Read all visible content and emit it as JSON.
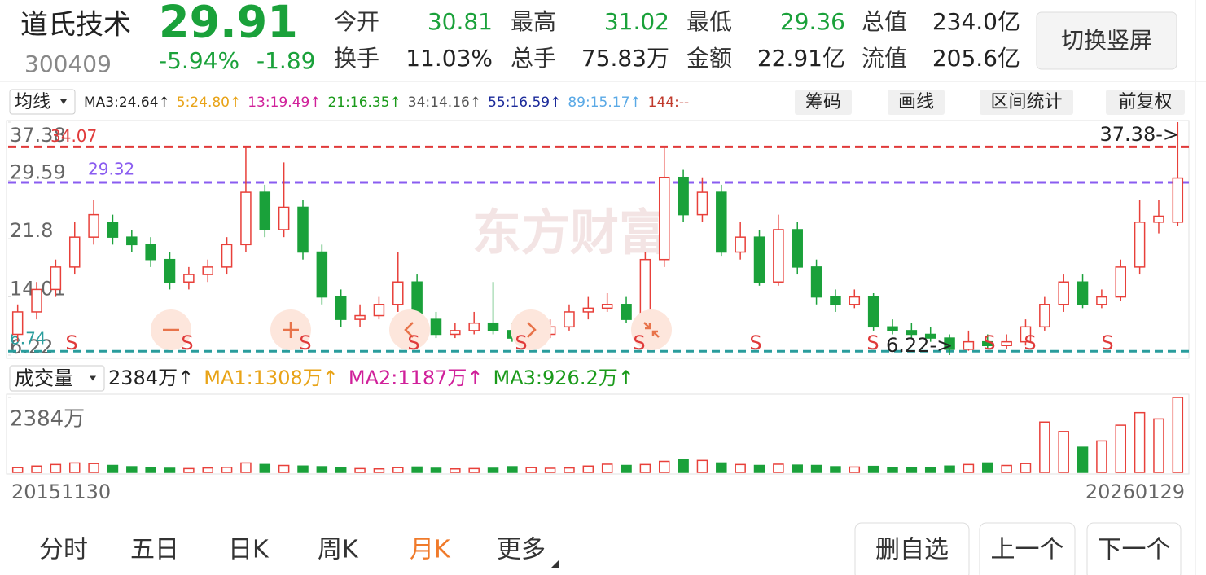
{
  "header": {
    "name": "道氏技术",
    "price": "29.91",
    "code": "300409",
    "change_pct": "-5.94%",
    "change": "-1.89",
    "stats": [
      {
        "label": "今开",
        "value": "30.81",
        "color": "#1aa13a"
      },
      {
        "label": "最高",
        "value": "31.02",
        "color": "#1aa13a"
      },
      {
        "label": "最低",
        "value": "29.36",
        "color": "#1aa13a"
      },
      {
        "label": "总值",
        "value": "234.0亿",
        "color": "#222222"
      },
      {
        "label": "换手",
        "value": "11.03%",
        "color": "#222222"
      },
      {
        "label": "总手",
        "value": "75.83万",
        "color": "#222222"
      },
      {
        "label": "金额",
        "value": "22.91亿",
        "color": "#222222"
      },
      {
        "label": "流值",
        "value": "205.6亿",
        "color": "#222222"
      }
    ],
    "button": "切换竖屏"
  },
  "toolbar": {
    "selector": "均线",
    "items": [
      {
        "text": "MA3:24.64↑",
        "color": "#222222"
      },
      {
        "text": "5:24.80↑",
        "color": "#e8a317"
      },
      {
        "text": "13:19.49↑",
        "color": "#d0209a"
      },
      {
        "text": "21:16.35↑",
        "color": "#1a9a1a"
      },
      {
        "text": "34:14.16↑",
        "color": "#555555"
      },
      {
        "text": "55:16.59↑",
        "color": "#1b2a9a"
      },
      {
        "text": "89:15.17↑",
        "color": "#5aa9e6"
      },
      {
        "text": "144:--",
        "color": "#c0392b"
      }
    ],
    "buttons": [
      "筹码",
      "画线",
      "区间统计",
      "前复权"
    ]
  },
  "chart_data": {
    "type": "candlestick",
    "watermark": "东方财富",
    "open": [
      9,
      12,
      15,
      18,
      22,
      24,
      22,
      21,
      19,
      16,
      17,
      18,
      21,
      28,
      23,
      26,
      20,
      14,
      11,
      11.5,
      13,
      16,
      11,
      9,
      9.5,
      10.5,
      9.5,
      8.5,
      9,
      10,
      12,
      12.5,
      13,
      11,
      19,
      30,
      25,
      28,
      20,
      22,
      16,
      23,
      18,
      14,
      13,
      14,
      10,
      9.5,
      9,
      8.5,
      7,
      8,
      7.5,
      8,
      10,
      13,
      16,
      13,
      14,
      18,
      24,
      24
    ],
    "high": [
      13,
      16,
      19,
      24,
      27,
      25,
      23,
      22,
      20,
      18,
      19,
      22,
      34.07,
      29,
      32,
      27,
      21,
      15,
      13,
      14,
      20,
      17,
      12,
      10.5,
      12,
      16,
      10.5,
      10,
      11,
      13,
      14,
      14.5,
      14,
      20,
      34.2,
      31,
      30,
      29,
      24,
      23,
      25,
      24,
      19,
      15,
      15,
      14.5,
      11,
      10.5,
      10,
      9,
      9.5,
      9,
      9,
      11,
      14,
      17,
      17,
      15,
      19,
      27,
      27,
      37.38
    ],
    "low": [
      8,
      11,
      14,
      17,
      21,
      21,
      20,
      18,
      15,
      15,
      16,
      17,
      20,
      22,
      22,
      19,
      13,
      10,
      10,
      11,
      12,
      10,
      8.5,
      8.5,
      9,
      9,
      8,
      8,
      8.5,
      9.5,
      11,
      12,
      10.5,
      10.5,
      18,
      24,
      24,
      19.5,
      19,
      15.5,
      15.5,
      17,
      13,
      12,
      12.5,
      9.5,
      9,
      8.5,
      8,
      6.22,
      6.8,
      7,
      7,
      7.5,
      9.5,
      12,
      12.5,
      12.5,
      13.5,
      17,
      22.5,
      23.5
    ],
    "close": [
      12,
      15,
      18,
      22,
      25,
      22,
      21,
      19,
      16,
      17,
      18,
      21,
      28,
      23,
      26,
      20,
      14,
      11,
      11.5,
      13,
      16,
      11,
      9,
      9.5,
      10.5,
      9.5,
      8.5,
      9,
      10,
      12,
      12.5,
      13,
      11,
      19,
      30,
      25,
      28,
      20,
      22,
      16,
      23,
      18,
      14,
      13,
      14,
      10,
      9.5,
      9,
      8.5,
      7,
      8,
      7.5,
      8,
      10,
      13,
      16,
      13,
      14,
      18,
      24,
      24.8,
      29.91
    ],
    "ylim": [
      6.22,
      37.38
    ],
    "yticks": [
      6.22,
      14.01,
      21.8,
      29.59,
      37.38
    ],
    "up_color": "#e8403a",
    "down_color": "#1aa13a",
    "reference_lines": [
      {
        "value": 34.07,
        "color": "#e03a3a"
      },
      {
        "value": 29.32,
        "color": "#8a5cf0"
      },
      {
        "value": 6.74,
        "color": "#2a9d9d"
      }
    ],
    "annotations": [
      "37.38->",
      "6.22->"
    ],
    "signals": [
      "S",
      "S",
      "S",
      "S",
      "S",
      "S",
      "S",
      "S",
      "S",
      "S",
      "S"
    ],
    "volume_header": {
      "selector": "成交量",
      "items": [
        {
          "text": "2384万↑",
          "color": "#222222"
        },
        {
          "text": "MA1:1308万↑",
          "color": "#e8a317"
        },
        {
          "text": "MA2:1187万↑",
          "color": "#d0209a"
        },
        {
          "text": "MA3:926.2万↑",
          "color": "#1a9a1a"
        }
      ]
    },
    "volume": [
      150,
      200,
      250,
      300,
      280,
      220,
      180,
      150,
      130,
      120,
      140,
      160,
      300,
      250,
      220,
      200,
      180,
      160,
      120,
      110,
      150,
      170,
      130,
      110,
      120,
      130,
      180,
      150,
      130,
      140,
      200,
      260,
      220,
      250,
      350,
      400,
      380,
      300,
      250,
      220,
      260,
      230,
      220,
      180,
      170,
      190,
      160,
      150,
      140,
      200,
      250,
      300,
      220,
      280,
      1600,
      1300,
      800,
      1000,
      1500,
      1900,
      1700,
      2384
    ],
    "volume_ylim": [
      0,
      2384
    ],
    "volume_yticks": [
      {
        "value": 2384,
        "label": "2384万"
      }
    ],
    "x_labels": [
      "20151130",
      "20260129"
    ]
  },
  "nav": {
    "tabs": [
      {
        "label": "分时",
        "color": "#333333"
      },
      {
        "label": "五日",
        "color": "#333333"
      },
      {
        "label": "日K",
        "color": "#333333"
      },
      {
        "label": "周K",
        "color": "#333333"
      },
      {
        "label": "月K",
        "color": "#f07a2a"
      },
      {
        "label": "更多",
        "color": "#333333"
      }
    ],
    "buttons": [
      "删自选",
      "上一个",
      "下一个"
    ]
  }
}
